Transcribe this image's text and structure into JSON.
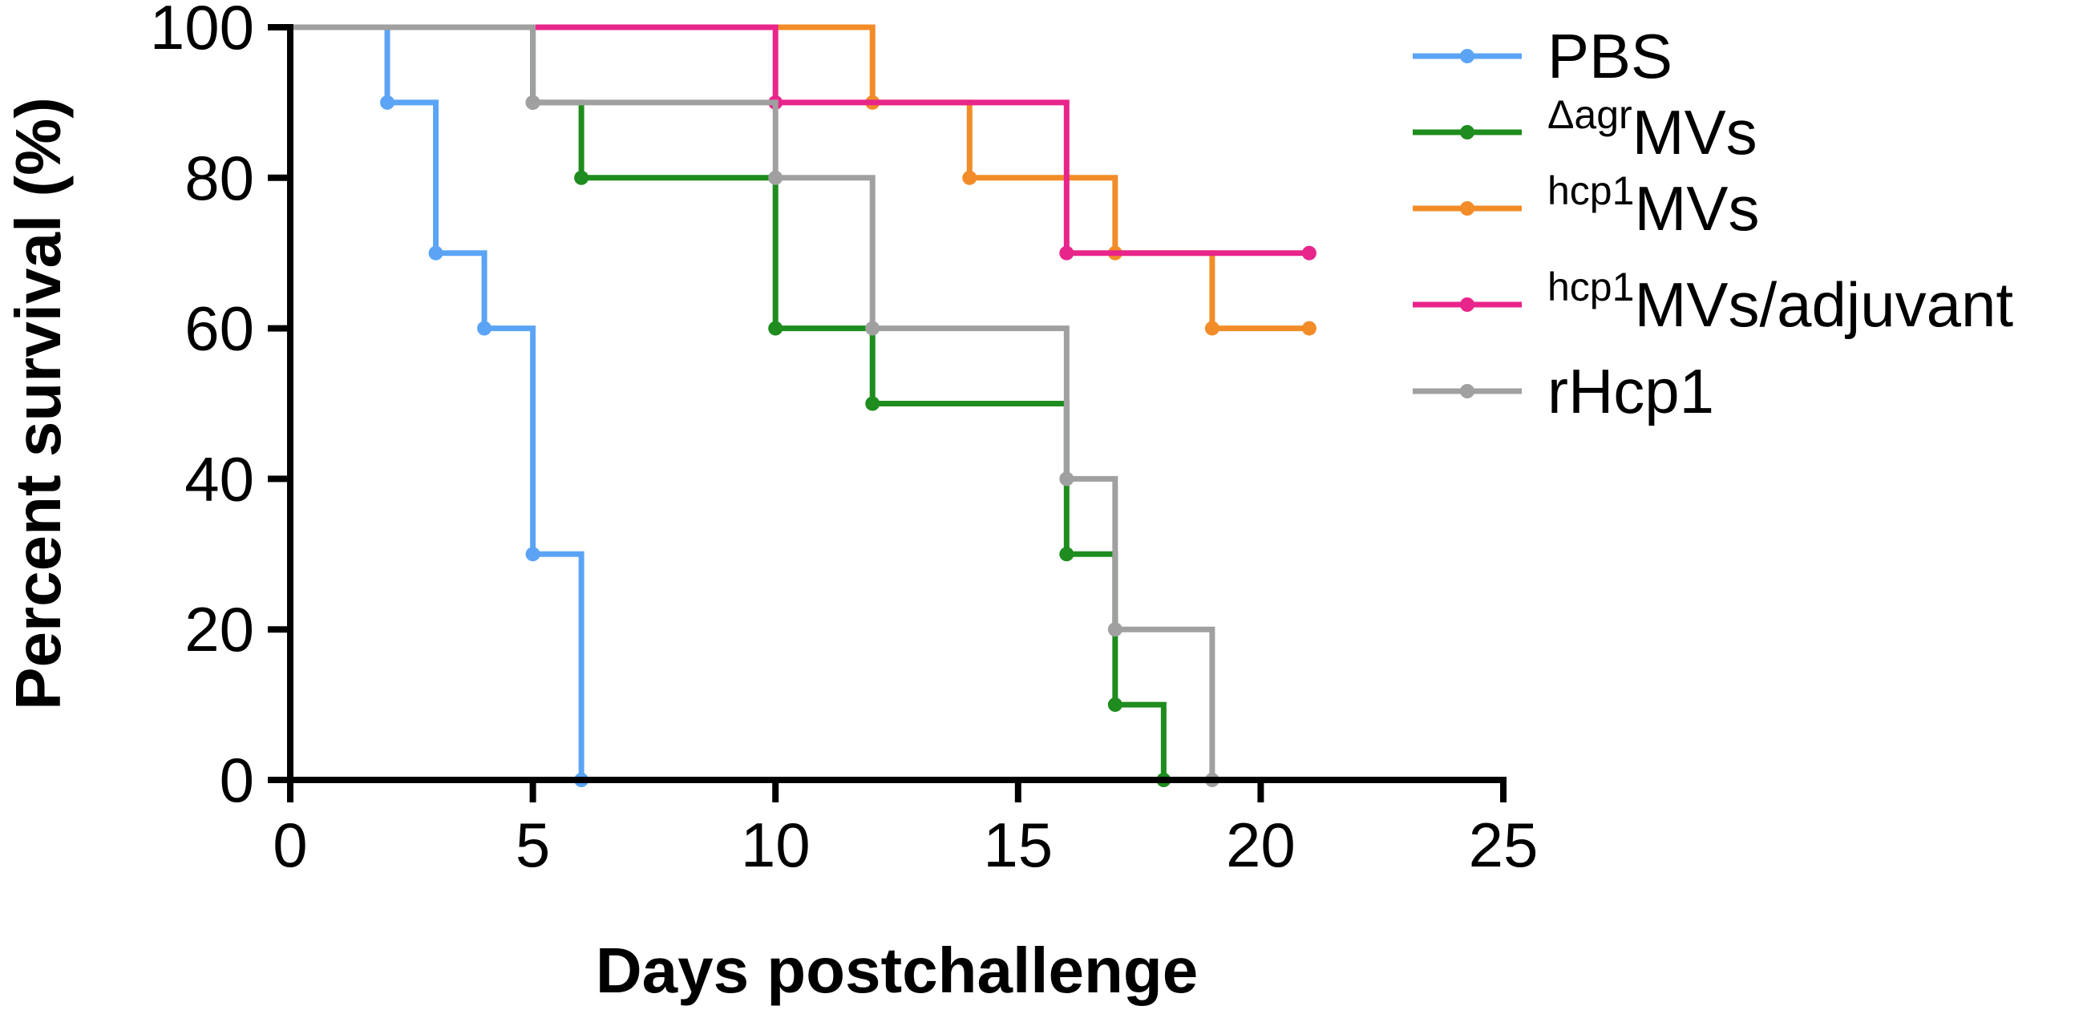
{
  "chart_data": {
    "type": "line",
    "step": true,
    "xlabel": "Days postchallenge",
    "ylabel": "Percent survival (%)",
    "xlim": [
      0,
      25
    ],
    "ylim": [
      0,
      100
    ],
    "xticks": [
      "0",
      "5",
      "10",
      "15",
      "20",
      "25"
    ],
    "yticks": [
      "0",
      "20",
      "40",
      "60",
      "80",
      "100"
    ],
    "grid": false,
    "legend_position": "right",
    "series": [
      {
        "name": "PBS",
        "sup": "",
        "main": "PBS",
        "color": "#5BA4F5",
        "points": [
          [
            0,
            100
          ],
          [
            2,
            90
          ],
          [
            3,
            70
          ],
          [
            4,
            60
          ],
          [
            5,
            30
          ],
          [
            6,
            0
          ]
        ],
        "markers": [
          [
            2,
            90
          ],
          [
            3,
            70
          ],
          [
            4,
            60
          ],
          [
            5,
            30
          ],
          [
            6,
            0
          ]
        ]
      },
      {
        "name": "ΔagrMVs",
        "sup": "Δagr",
        "main": "MVs",
        "color": "#1E8C1E",
        "points": [
          [
            0,
            100
          ],
          [
            5,
            90
          ],
          [
            6,
            80
          ],
          [
            10,
            60
          ],
          [
            12,
            50
          ],
          [
            16,
            30
          ],
          [
            17,
            10
          ],
          [
            18,
            0
          ]
        ],
        "markers": [
          [
            5,
            90
          ],
          [
            6,
            80
          ],
          [
            10,
            60
          ],
          [
            12,
            50
          ],
          [
            16,
            30
          ],
          [
            17,
            10
          ],
          [
            18,
            0
          ]
        ]
      },
      {
        "name": "hcp1MVs",
        "sup": "hcp1",
        "main": "MVs",
        "color": "#F28C28",
        "points": [
          [
            0,
            100
          ],
          [
            10,
            100
          ],
          [
            12,
            90
          ],
          [
            14,
            80
          ],
          [
            17,
            70
          ],
          [
            19,
            60
          ],
          [
            21,
            60
          ]
        ],
        "markers": [
          [
            12,
            90
          ],
          [
            14,
            80
          ],
          [
            17,
            70
          ],
          [
            19,
            60
          ],
          [
            21,
            60
          ]
        ]
      },
      {
        "name": "hcp1MVs/adjuvant",
        "sup": "hcp1",
        "main": "MVs/adjuvant",
        "color": "#E8258A",
        "points": [
          [
            0,
            100
          ],
          [
            10,
            90
          ],
          [
            16,
            70
          ],
          [
            21,
            70
          ]
        ],
        "markers": [
          [
            10,
            90
          ],
          [
            16,
            70
          ],
          [
            21,
            70
          ]
        ]
      },
      {
        "name": "rHcp1",
        "sup": "",
        "main": "rHcp1",
        "color": "#A0A0A0",
        "points": [
          [
            0,
            100
          ],
          [
            5,
            90
          ],
          [
            10,
            80
          ],
          [
            12,
            60
          ],
          [
            16,
            40
          ],
          [
            17,
            20
          ],
          [
            19,
            0
          ]
        ],
        "markers": [
          [
            5,
            90
          ],
          [
            10,
            80
          ],
          [
            12,
            60
          ],
          [
            16,
            40
          ],
          [
            17,
            20
          ],
          [
            19,
            0
          ]
        ]
      }
    ]
  }
}
